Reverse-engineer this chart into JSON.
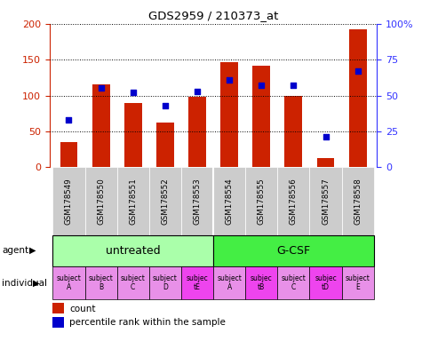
{
  "title": "GDS2959 / 210373_at",
  "samples": [
    "GSM178549",
    "GSM178550",
    "GSM178551",
    "GSM178552",
    "GSM178553",
    "GSM178554",
    "GSM178555",
    "GSM178556",
    "GSM178557",
    "GSM178558"
  ],
  "counts": [
    35,
    116,
    90,
    62,
    98,
    147,
    141,
    100,
    13,
    192
  ],
  "percentiles": [
    33,
    55,
    52,
    43,
    53,
    61,
    57,
    57,
    21,
    67
  ],
  "ylim_left": [
    0,
    200
  ],
  "ylim_right": [
    0,
    100
  ],
  "yticks_left": [
    0,
    50,
    100,
    150,
    200
  ],
  "yticks_right": [
    0,
    25,
    50,
    75,
    100
  ],
  "yticklabels_right": [
    "0",
    "25",
    "50",
    "75",
    "100%"
  ],
  "agent_groups": [
    {
      "label": "untreated",
      "start": 0,
      "end": 5,
      "color": "#aaffaa"
    },
    {
      "label": "G-CSF",
      "start": 5,
      "end": 10,
      "color": "#44ee44"
    }
  ],
  "individual_labels": [
    "subject\nA",
    "subject\nB",
    "subject\nC",
    "subject\nD",
    "subjec\ntE",
    "subject\nA",
    "subjec\ntB",
    "subject\nC",
    "subjec\ntD",
    "subject\nE"
  ],
  "individual_highlight": [
    4,
    6,
    8
  ],
  "individual_color_default": "#e890e8",
  "individual_color_highlight": "#ee44ee",
  "bar_color": "#cc2200",
  "dot_color": "#0000cc",
  "axis_color_left": "#cc2200",
  "axis_color_right": "#3333ff",
  "xlabel_bg_color": "#cccccc",
  "legend_items": [
    "count",
    "percentile rank within the sample"
  ],
  "bar_width": 0.55
}
